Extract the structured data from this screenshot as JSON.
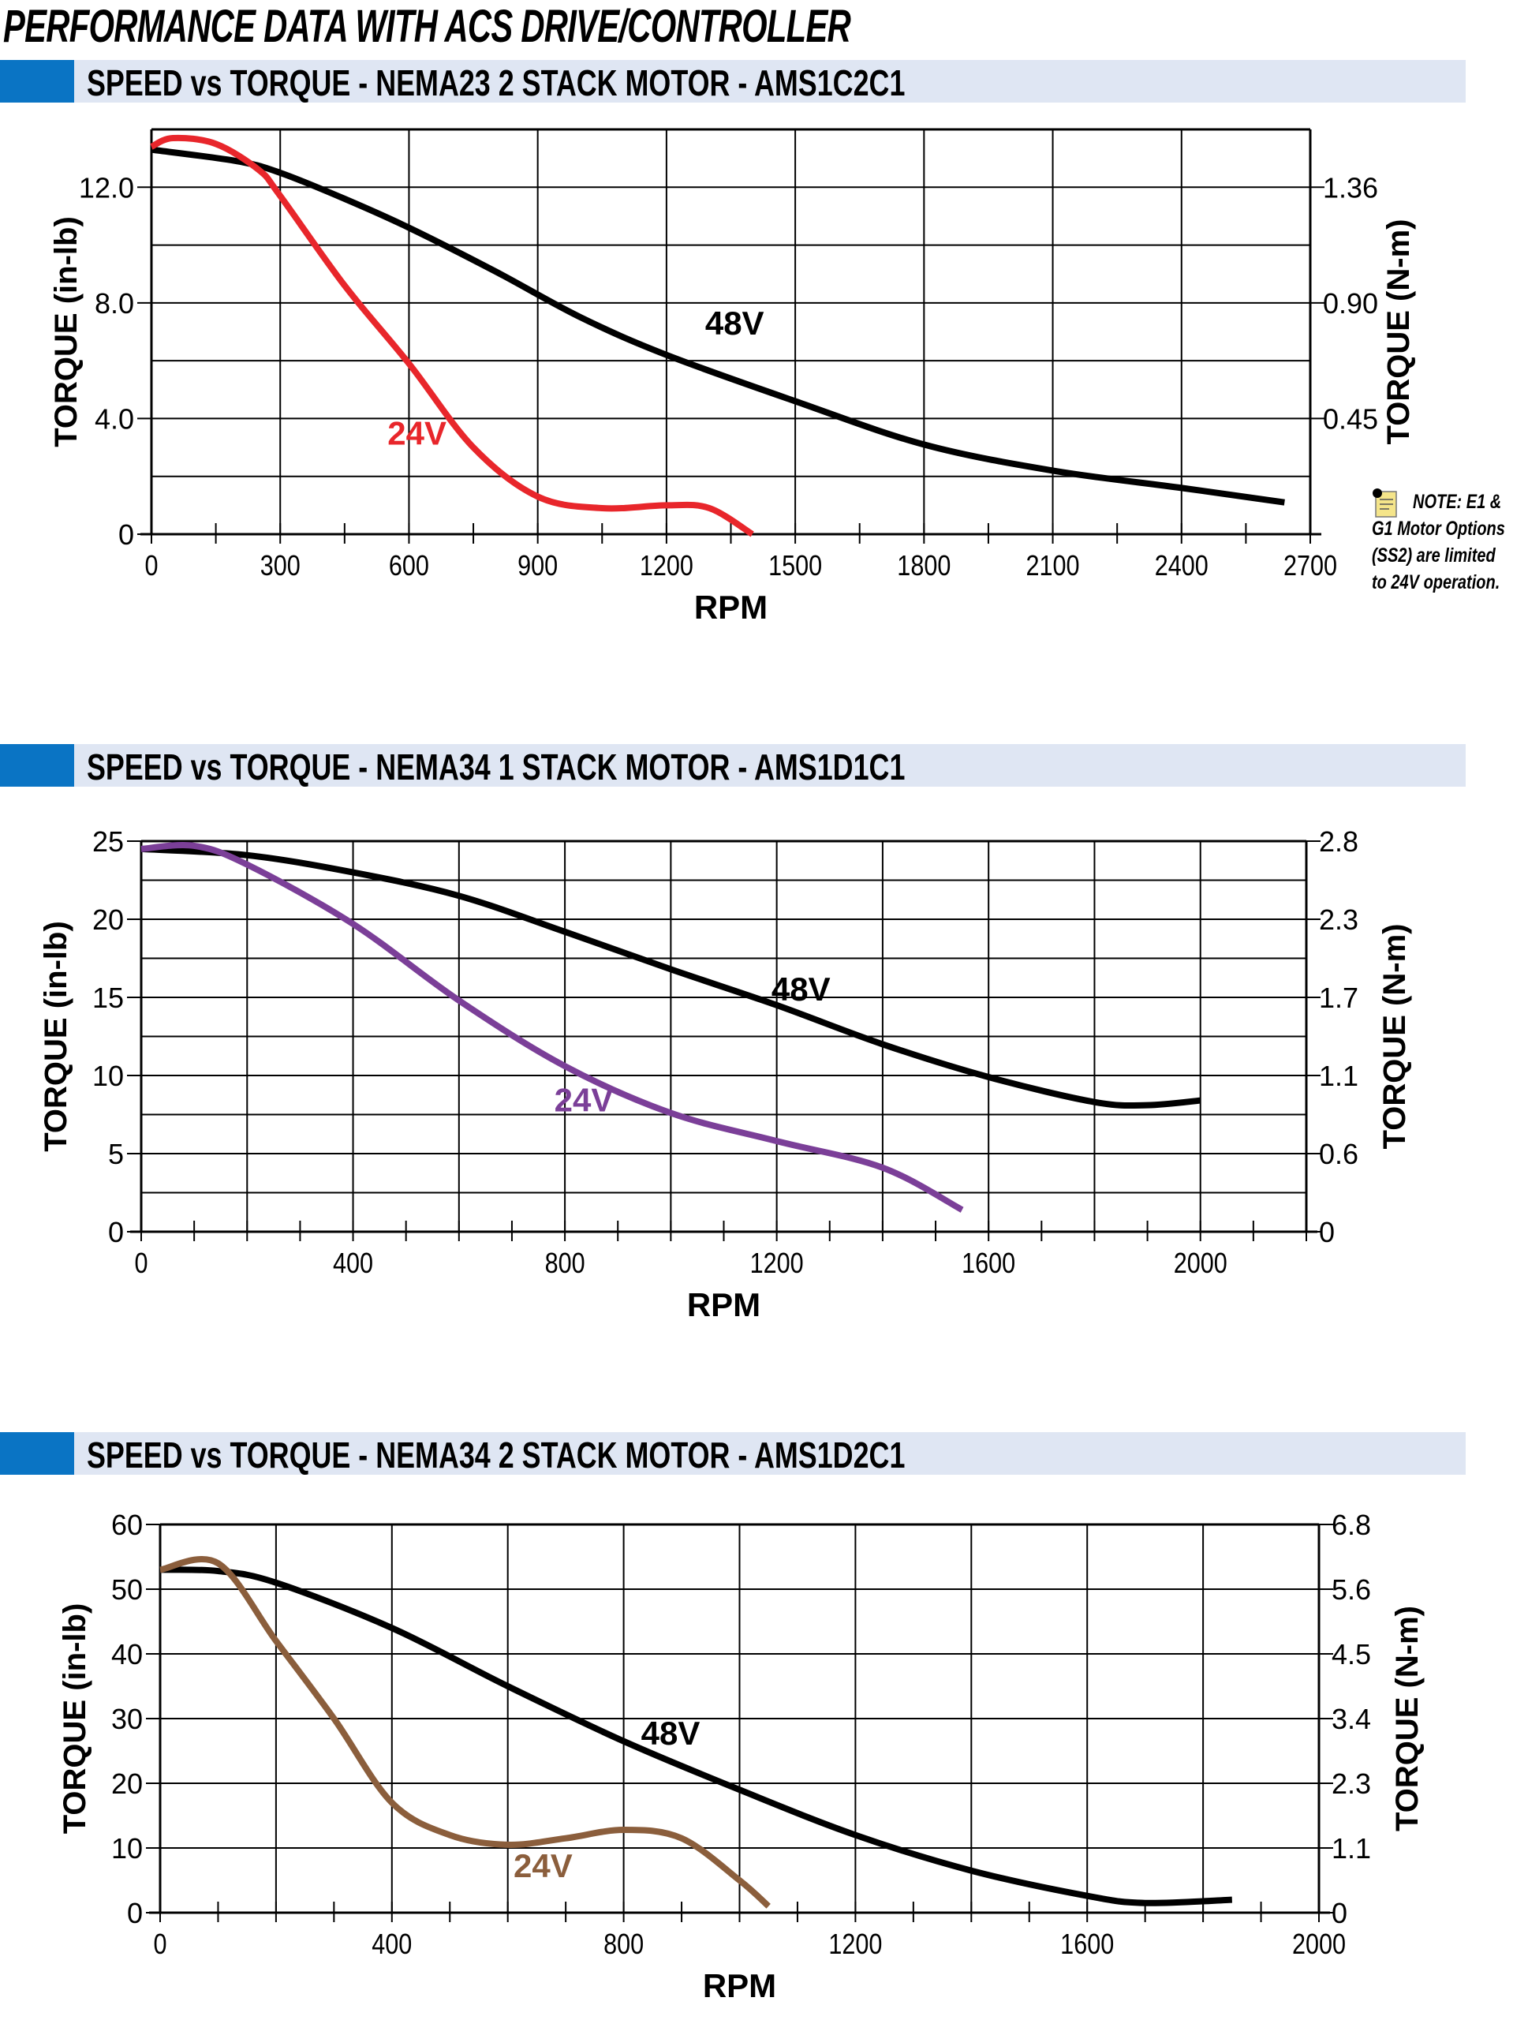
{
  "page_title": "PERFORMANCE DATA WITH ACS DRIVE/CONTROLLER",
  "note": {
    "lines": [
      "NOTE:  E1 &",
      "G1 Motor Options",
      "(SS2) are limited",
      "to 24V operation."
    ]
  },
  "chart_data": [
    {
      "type": "line",
      "title": "SPEED vs TORQUE - NEMA23 2 STACK MOTOR - AMS1C2C1",
      "xlabel": "RPM",
      "ylabel": "TORQUE (in-lb)",
      "y2label": "TORQUE (N-m)",
      "xlim": [
        0,
        2700
      ],
      "ylim": [
        0,
        14
      ],
      "xgrid_step": 300,
      "ygrid_step": 2,
      "xticks": [
        "0",
        "300",
        "600",
        "900",
        "1200",
        "1500",
        "1800",
        "2100",
        "2400",
        "2700"
      ],
      "xtick_values": [
        0,
        300,
        600,
        900,
        1200,
        1500,
        1800,
        2100,
        2400,
        2700
      ],
      "yticks": [
        "0",
        "4.0",
        "8.0",
        "12.0"
      ],
      "ytick_values": [
        0,
        4,
        8,
        12
      ],
      "y2ticks": [
        "0.45",
        "0.90",
        "1.36"
      ],
      "y2tick_values": [
        4,
        8,
        12
      ],
      "series": [
        {
          "name": "48V",
          "color": "#000000",
          "x": [
            0,
            200,
            300,
            450,
            600,
            800,
            1000,
            1200,
            1500,
            1800,
            2100,
            2400,
            2640
          ],
          "y": [
            13.3,
            12.9,
            12.5,
            11.6,
            10.6,
            9.1,
            7.5,
            6.2,
            4.6,
            3.1,
            2.2,
            1.6,
            1.1
          ],
          "label_at": [
            1290,
            6.9
          ]
        },
        {
          "name": "24V",
          "color": "#e8262b",
          "x": [
            0,
            50,
            150,
            250,
            300,
            450,
            600,
            750,
            900,
            1050,
            1200,
            1300,
            1400
          ],
          "y": [
            13.4,
            13.7,
            13.5,
            12.6,
            11.7,
            8.6,
            5.9,
            3.0,
            1.3,
            0.9,
            1.0,
            0.9,
            0
          ],
          "label_at": [
            550,
            3.1
          ]
        }
      ]
    },
    {
      "type": "line",
      "title": "SPEED vs TORQUE - NEMA34 1 STACK MOTOR - AMS1D1C1",
      "xlabel": "RPM",
      "ylabel": "TORQUE (in-lb)",
      "y2label": "TORQUE (N-m)",
      "xlim": [
        0,
        2200
      ],
      "ylim": [
        0,
        25
      ],
      "xgrid_step": 200,
      "ygrid_step": 2.5,
      "xticks": [
        "0",
        "400",
        "800",
        "1200",
        "1600",
        "2000"
      ],
      "xtick_values": [
        0,
        400,
        800,
        1200,
        1600,
        2000
      ],
      "yticks": [
        "0",
        "5",
        "10",
        "15",
        "20",
        "25"
      ],
      "ytick_values": [
        0,
        5,
        10,
        15,
        20,
        25
      ],
      "y2ticks": [
        "0",
        "0.6",
        "1.1",
        "1.7",
        "2.3",
        "2.8"
      ],
      "y2tick_values": [
        0,
        5,
        10,
        15,
        20,
        25
      ],
      "series": [
        {
          "name": "48V",
          "color": "#000000",
          "x": [
            0,
            200,
            400,
            600,
            800,
            1000,
            1200,
            1400,
            1600,
            1800,
            1900,
            2000
          ],
          "y": [
            24.5,
            24.1,
            23.0,
            21.5,
            19.2,
            16.8,
            14.5,
            12.0,
            9.9,
            8.3,
            8.1,
            8.4
          ],
          "label_at": [
            1190,
            14.8
          ]
        },
        {
          "name": "24V",
          "color": "#7b3f98",
          "x": [
            0,
            100,
            200,
            400,
            600,
            800,
            1000,
            1200,
            1400,
            1550
          ],
          "y": [
            24.5,
            24.7,
            23.5,
            19.7,
            14.8,
            10.6,
            7.6,
            5.8,
            4.1,
            1.4
          ],
          "label_at": [
            780,
            7.7
          ]
        }
      ]
    },
    {
      "type": "line",
      "title": "SPEED vs TORQUE - NEMA34 2 STACK MOTOR - AMS1D2C1",
      "xlabel": "RPM",
      "ylabel": "TORQUE (in-lb)",
      "y2label": "TORQUE (N-m)",
      "xlim": [
        0,
        2000
      ],
      "ylim": [
        0,
        60
      ],
      "xgrid_step": 200,
      "ygrid_step": 10,
      "xticks": [
        "0",
        "400",
        "800",
        "1200",
        "1600",
        "2000"
      ],
      "xtick_values": [
        0,
        400,
        800,
        1200,
        1600,
        2000
      ],
      "yticks": [
        "0",
        "10",
        "20",
        "30",
        "40",
        "50",
        "60"
      ],
      "ytick_values": [
        0,
        10,
        20,
        30,
        40,
        50,
        60
      ],
      "y2ticks": [
        "0",
        "1.1",
        "2.3",
        "3.4",
        "4.5",
        "5.6",
        "6.8"
      ],
      "y2tick_values": [
        0,
        10,
        20,
        30,
        40,
        50,
        60
      ],
      "series": [
        {
          "name": "48V",
          "color": "#000000",
          "x": [
            0,
            100,
            200,
            400,
            600,
            800,
            1000,
            1200,
            1400,
            1600,
            1700,
            1850
          ],
          "y": [
            53,
            52.8,
            51,
            44,
            35,
            26.5,
            19,
            12,
            6.5,
            2.6,
            1.5,
            2
          ],
          "label_at": [
            830,
            26
          ]
        },
        {
          "name": "24V",
          "color": "#8b5e3c",
          "x": [
            0,
            100,
            200,
            300,
            400,
            500,
            600,
            700,
            800,
            900,
            1000,
            1050
          ],
          "y": [
            53,
            54,
            42,
            30,
            17,
            12,
            10.5,
            11.5,
            12.8,
            11.5,
            5,
            1
          ],
          "label_at": [
            610,
            5.5
          ]
        }
      ]
    }
  ]
}
